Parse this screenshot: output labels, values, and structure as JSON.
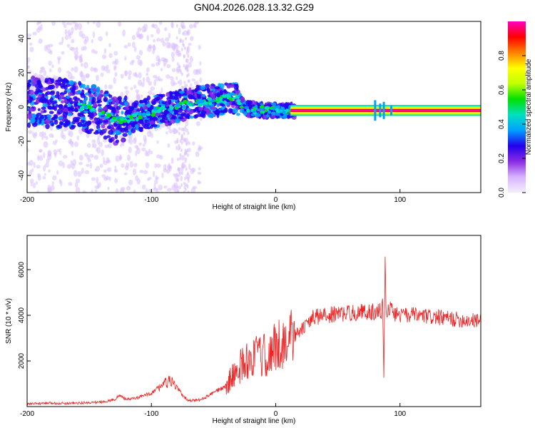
{
  "title": "GN04.2026.028.13.32.G29",
  "chart_data": [
    {
      "type": "heatmap",
      "xlabel": "Height of straight line (km)",
      "ylabel": "Frequency (Hz)",
      "xlim": [
        -200,
        165
      ],
      "ylim": [
        -50,
        50
      ],
      "xticks": [
        "-200",
        "-100",
        "0",
        "100"
      ],
      "xtick_values": [
        -200,
        -100,
        0,
        100
      ],
      "yticks": [
        "40",
        "20",
        "0",
        "-20",
        "-40"
      ],
      "ytick_values": [
        40,
        20,
        0,
        -20,
        -40
      ],
      "colorbar": {
        "label": "Normalized spectral amplitude",
        "range": [
          0,
          1
        ],
        "ticks": [
          "0.0",
          "0.2",
          "0.4",
          "0.6",
          "0.8"
        ],
        "tick_values": [
          0,
          0.2,
          0.4,
          0.6,
          0.8
        ],
        "colors": [
          "#f4eeff",
          "#d7b4ff",
          "#8a2be2",
          "#2200ee",
          "#00a0ff",
          "#00e0c0",
          "#00e000",
          "#c0ff00",
          "#ffff00",
          "#ff8000",
          "#ff0000",
          "#ff00c0"
        ]
      },
      "ridge": [
        {
          "x": -200,
          "f": 3
        },
        {
          "x": -170,
          "f": 2
        },
        {
          "x": -140,
          "f": -3
        },
        {
          "x": -130,
          "f": -8
        },
        {
          "x": -115,
          "f": -6
        },
        {
          "x": -100,
          "f": -3
        },
        {
          "x": -85,
          "f": -1
        },
        {
          "x": -65,
          "f": 3
        },
        {
          "x": -45,
          "f": 4
        },
        {
          "x": -32,
          "f": 6
        },
        {
          "x": -25,
          "f": -1
        },
        {
          "x": -10,
          "f": -2
        },
        {
          "x": 15,
          "f": -2
        },
        {
          "x": 80,
          "f": -2
        },
        {
          "x": 165,
          "f": -2
        }
      ]
    },
    {
      "type": "line",
      "xlabel": "Height of straight line (km)",
      "ylabel": "SNR (10 * v/v)",
      "xlim": [
        -200,
        165
      ],
      "ylim": [
        0,
        7500
      ],
      "xticks": [
        "-200",
        "-100",
        "0",
        "100"
      ],
      "xtick_values": [
        -200,
        -100,
        0,
        100
      ],
      "yticks": [
        "6000",
        "4000",
        "2000"
      ],
      "ytick_values": [
        6000,
        4000,
        2000
      ],
      "color": "#ee2222",
      "series": [
        {
          "name": "SNR",
          "x": [
            -200,
            -180,
            -160,
            -140,
            -130,
            -125,
            -120,
            -110,
            -100,
            -95,
            -90,
            -85,
            -80,
            -75,
            -70,
            -60,
            -50,
            -40,
            -35,
            -30,
            -25,
            -20,
            -15,
            -10,
            -5,
            0,
            5,
            10,
            15,
            20,
            25,
            30,
            40,
            50,
            60,
            70,
            75,
            80,
            85,
            86,
            87,
            88,
            89,
            90,
            95,
            100,
            110,
            120,
            130,
            140,
            150,
            165
          ],
          "y": [
            120,
            150,
            150,
            200,
            300,
            500,
            300,
            400,
            600,
            800,
            1000,
            1100,
            900,
            500,
            250,
            300,
            600,
            900,
            1300,
            1700,
            1900,
            2100,
            2200,
            2200,
            2300,
            2600,
            2800,
            2900,
            3100,
            3300,
            3600,
            3900,
            4000,
            4050,
            4100,
            4150,
            4150,
            4150,
            4200,
            4800,
            1200,
            6500,
            3800,
            4400,
            4100,
            4000,
            4000,
            3950,
            3900,
            3850,
            3800,
            3750
          ]
        }
      ]
    }
  ]
}
